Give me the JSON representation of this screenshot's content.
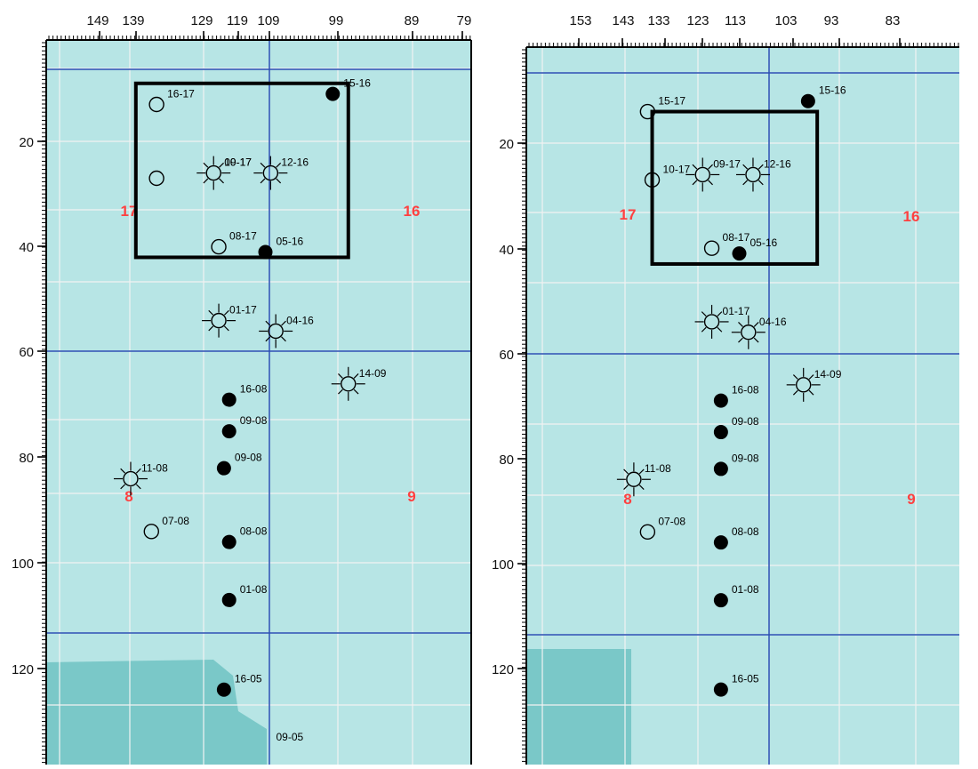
{
  "colors": {
    "background": "#ffffff",
    "frame": "#000000",
    "grid_line": "#f2f2f2",
    "reference_line": "#2a4fb4",
    "section_label": "#ff4040",
    "low_values": "#7ac8c8",
    "high_values": "#fffbe8"
  },
  "color_ramp": [
    "#78c8c8",
    "#4aa8e6",
    "#2f62c9",
    "#7f50b0",
    "#c55bb6",
    "#2c9a3c",
    "#56c13c",
    "#f5852c",
    "#e5502a",
    "#fffbe8"
  ],
  "panels": [
    {
      "id": "left",
      "x_ticks": [
        "149",
        "139",
        "129",
        "119",
        "109",
        "99",
        "89",
        "79"
      ],
      "y_ticks": [
        "20",
        "40",
        "60",
        "80",
        "100",
        "120"
      ],
      "section_labels": [
        "17",
        "16",
        "8",
        "9"
      ],
      "wells": [
        {
          "label": "15-16",
          "type": "filled",
          "x": 104,
          "y": 11
        },
        {
          "label": "16-17",
          "type": "open",
          "x": 138,
          "y": 13
        },
        {
          "label": "10-17",
          "type": "starred-open",
          "x": 127,
          "y": 26
        },
        {
          "label": "09-17",
          "type": "none",
          "x": 127,
          "y": 26
        },
        {
          "label": "12-16",
          "type": "starred-open",
          "x": 116,
          "y": 26
        },
        {
          "label": "",
          "type": "open",
          "x": 138,
          "y": 27
        },
        {
          "label": "08-17",
          "type": "open",
          "x": 126,
          "y": 40
        },
        {
          "label": "05-16",
          "type": "filled",
          "x": 117,
          "y": 41
        },
        {
          "label": "01-17",
          "type": "starred-open",
          "x": 126,
          "y": 54
        },
        {
          "label": "04-16",
          "type": "starred-open",
          "x": 115,
          "y": 56
        },
        {
          "label": "14-09",
          "type": "starred-open",
          "x": 101,
          "y": 66
        },
        {
          "label": "16-08",
          "type": "filled",
          "x": 124,
          "y": 69
        },
        {
          "label": "09-08",
          "type": "filled",
          "x": 124,
          "y": 75
        },
        {
          "label": "09-08",
          "type": "filled",
          "x": 125,
          "y": 82
        },
        {
          "label": "11-08",
          "type": "starred-open",
          "x": 143,
          "y": 84
        },
        {
          "label": "07-08",
          "type": "open",
          "x": 139,
          "y": 94
        },
        {
          "label": "08-08",
          "type": "filled",
          "x": 124,
          "y": 96
        },
        {
          "label": "01-08",
          "type": "filled",
          "x": 124,
          "y": 107
        },
        {
          "label": "16-05",
          "type": "filled",
          "x": 125,
          "y": 124
        },
        {
          "label": "09-05",
          "type": "none",
          "x": 117,
          "y": 135
        }
      ],
      "box": {
        "x0": 142,
        "x1": 101,
        "y0": 9,
        "y1": 42
      }
    },
    {
      "id": "right",
      "x_ticks": [
        "153",
        "143",
        "133",
        "123",
        "113",
        "103",
        "93",
        "83"
      ],
      "y_ticks": [
        "20",
        "40",
        "60",
        "80",
        "100",
        "120"
      ],
      "section_labels": [
        "17",
        "16",
        "8",
        "9"
      ],
      "wells": [
        {
          "label": "15-16",
          "type": "filled",
          "x": 103,
          "y": 12
        },
        {
          "label": "15-17",
          "type": "open",
          "x": 138,
          "y": 14
        },
        {
          "label": "10-17",
          "type": "open",
          "x": 137,
          "y": 27
        },
        {
          "label": "09-17",
          "type": "starred-open",
          "x": 126,
          "y": 26
        },
        {
          "label": "12-16",
          "type": "starred-open",
          "x": 115,
          "y": 26
        },
        {
          "label": "08-17",
          "type": "open",
          "x": 124,
          "y": 40
        },
        {
          "label": "05-16",
          "type": "filled",
          "x": 118,
          "y": 41
        },
        {
          "label": "01-17",
          "type": "starred-open",
          "x": 124,
          "y": 54
        },
        {
          "label": "04-16",
          "type": "starred-open",
          "x": 116,
          "y": 56
        },
        {
          "label": "14-09",
          "type": "starred-open",
          "x": 104,
          "y": 66
        },
        {
          "label": "16-08",
          "type": "filled",
          "x": 122,
          "y": 69
        },
        {
          "label": "09-08",
          "type": "filled",
          "x": 122,
          "y": 75
        },
        {
          "label": "09-08",
          "type": "filled",
          "x": 122,
          "y": 82
        },
        {
          "label": "11-08",
          "type": "starred-open",
          "x": 141,
          "y": 84
        },
        {
          "label": "07-08",
          "type": "open",
          "x": 138,
          "y": 94
        },
        {
          "label": "08-08",
          "type": "filled",
          "x": 122,
          "y": 96
        },
        {
          "label": "01-08",
          "type": "filled",
          "x": 122,
          "y": 107
        },
        {
          "label": "16-05",
          "type": "filled",
          "x": 122,
          "y": 124
        }
      ],
      "box": {
        "x0": 137,
        "x1": 101,
        "y0": 14,
        "y1": 43
      }
    }
  ]
}
